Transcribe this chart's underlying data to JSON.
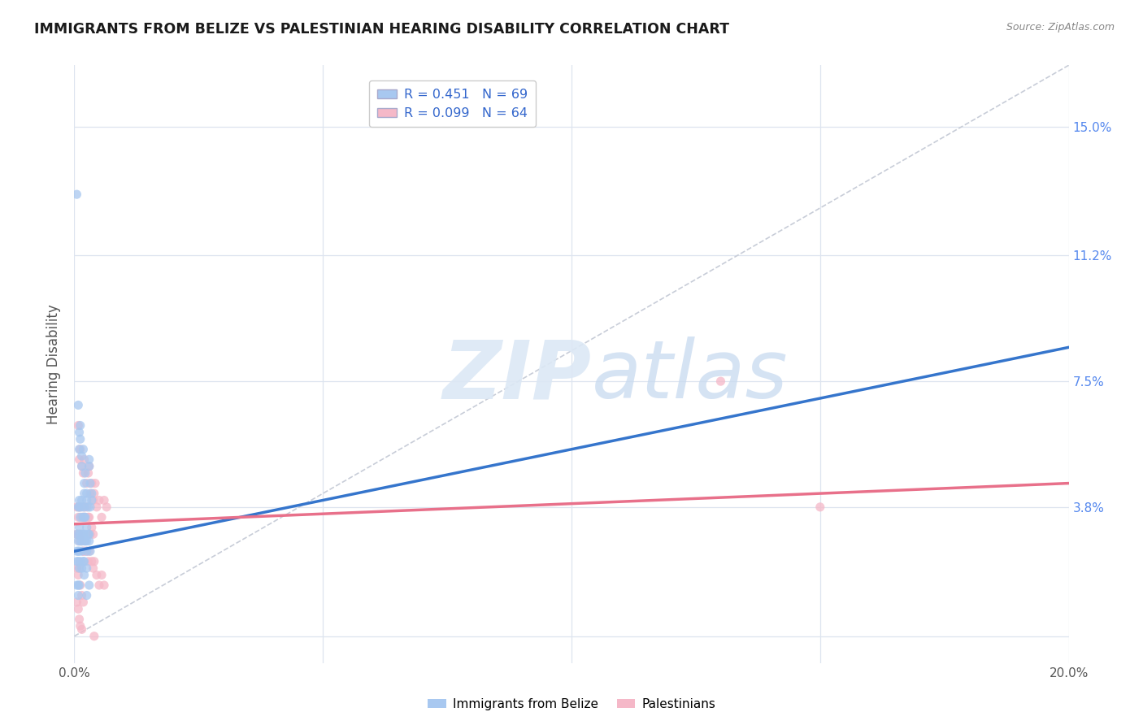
{
  "title": "IMMIGRANTS FROM BELIZE VS PALESTINIAN HEARING DISABILITY CORRELATION CHART",
  "source": "Source: ZipAtlas.com",
  "ylabel_label": "Hearing Disability",
  "right_ytick_labels": [
    "",
    "3.8%",
    "7.5%",
    "11.2%",
    "15.0%"
  ],
  "xlim": [
    0.0,
    0.2
  ],
  "ylim": [
    -0.008,
    0.168
  ],
  "belize_color": "#a8c8f0",
  "palestinian_color": "#f5b8c8",
  "belize_line_color": "#3575cc",
  "palestinian_line_color": "#e8708a",
  "diagonal_line_color": "#c8cdd8",
  "grid_yticks": [
    0.0,
    0.038,
    0.075,
    0.112,
    0.15
  ],
  "xtick_positions": [
    0.0,
    0.05,
    0.1,
    0.15,
    0.2
  ],
  "xtick_labels": [
    "0.0%",
    "",
    "",
    "",
    "20.0%"
  ],
  "belize_scatter": [
    [
      0.0005,
      0.13
    ],
    [
      0.0008,
      0.068
    ],
    [
      0.001,
      0.06
    ],
    [
      0.001,
      0.055
    ],
    [
      0.0012,
      0.058
    ],
    [
      0.0012,
      0.062
    ],
    [
      0.0015,
      0.053
    ],
    [
      0.0015,
      0.05
    ],
    [
      0.0018,
      0.055
    ],
    [
      0.002,
      0.045
    ],
    [
      0.002,
      0.042
    ],
    [
      0.0022,
      0.048
    ],
    [
      0.0025,
      0.04
    ],
    [
      0.0025,
      0.042
    ],
    [
      0.0028,
      0.038
    ],
    [
      0.003,
      0.05
    ],
    [
      0.003,
      0.052
    ],
    [
      0.0032,
      0.045
    ],
    [
      0.0032,
      0.038
    ],
    [
      0.0035,
      0.04
    ],
    [
      0.0035,
      0.042
    ],
    [
      0.0008,
      0.038
    ],
    [
      0.001,
      0.04
    ],
    [
      0.001,
      0.038
    ],
    [
      0.0012,
      0.035
    ],
    [
      0.0015,
      0.038
    ],
    [
      0.0015,
      0.04
    ],
    [
      0.0018,
      0.035
    ],
    [
      0.002,
      0.038
    ],
    [
      0.002,
      0.035
    ],
    [
      0.0022,
      0.035
    ],
    [
      0.0025,
      0.032
    ],
    [
      0.0005,
      0.03
    ],
    [
      0.0008,
      0.028
    ],
    [
      0.001,
      0.032
    ],
    [
      0.001,
      0.03
    ],
    [
      0.0012,
      0.028
    ],
    [
      0.0015,
      0.03
    ],
    [
      0.0015,
      0.028
    ],
    [
      0.0018,
      0.03
    ],
    [
      0.002,
      0.03
    ],
    [
      0.002,
      0.028
    ],
    [
      0.0022,
      0.028
    ],
    [
      0.0025,
      0.025
    ],
    [
      0.0025,
      0.028
    ],
    [
      0.0028,
      0.03
    ],
    [
      0.003,
      0.028
    ],
    [
      0.003,
      0.03
    ],
    [
      0.0032,
      0.025
    ],
    [
      0.0005,
      0.025
    ],
    [
      0.0005,
      0.022
    ],
    [
      0.0008,
      0.025
    ],
    [
      0.0008,
      0.022
    ],
    [
      0.001,
      0.025
    ],
    [
      0.001,
      0.02
    ],
    [
      0.0012,
      0.022
    ],
    [
      0.0015,
      0.025
    ],
    [
      0.0015,
      0.02
    ],
    [
      0.0018,
      0.022
    ],
    [
      0.002,
      0.022
    ],
    [
      0.002,
      0.018
    ],
    [
      0.0025,
      0.02
    ],
    [
      0.0005,
      0.015
    ],
    [
      0.0008,
      0.015
    ],
    [
      0.0008,
      0.012
    ],
    [
      0.001,
      0.015
    ],
    [
      0.0025,
      0.012
    ],
    [
      0.003,
      0.015
    ]
  ],
  "palestinian_scatter": [
    [
      0.0008,
      0.062
    ],
    [
      0.001,
      0.052
    ],
    [
      0.0012,
      0.055
    ],
    [
      0.0015,
      0.05
    ],
    [
      0.0018,
      0.048
    ],
    [
      0.002,
      0.052
    ],
    [
      0.0025,
      0.045
    ],
    [
      0.0028,
      0.048
    ],
    [
      0.003,
      0.05
    ],
    [
      0.0032,
      0.042
    ],
    [
      0.0035,
      0.045
    ],
    [
      0.0038,
      0.04
    ],
    [
      0.004,
      0.042
    ],
    [
      0.0042,
      0.045
    ],
    [
      0.0045,
      0.038
    ],
    [
      0.005,
      0.04
    ],
    [
      0.0055,
      0.035
    ],
    [
      0.006,
      0.04
    ],
    [
      0.0065,
      0.038
    ],
    [
      0.0005,
      0.038
    ],
    [
      0.0008,
      0.035
    ],
    [
      0.001,
      0.038
    ],
    [
      0.0012,
      0.038
    ],
    [
      0.0015,
      0.035
    ],
    [
      0.0018,
      0.035
    ],
    [
      0.002,
      0.038
    ],
    [
      0.0022,
      0.035
    ],
    [
      0.0025,
      0.038
    ],
    [
      0.0028,
      0.035
    ],
    [
      0.003,
      0.035
    ],
    [
      0.0032,
      0.03
    ],
    [
      0.0035,
      0.032
    ],
    [
      0.0038,
      0.03
    ],
    [
      0.0005,
      0.03
    ],
    [
      0.0008,
      0.03
    ],
    [
      0.001,
      0.028
    ],
    [
      0.0012,
      0.03
    ],
    [
      0.0015,
      0.028
    ],
    [
      0.0018,
      0.025
    ],
    [
      0.002,
      0.025
    ],
    [
      0.0025,
      0.025
    ],
    [
      0.0028,
      0.022
    ],
    [
      0.003,
      0.025
    ],
    [
      0.0035,
      0.022
    ],
    [
      0.0038,
      0.02
    ],
    [
      0.004,
      0.022
    ],
    [
      0.0045,
      0.018
    ],
    [
      0.005,
      0.015
    ],
    [
      0.0055,
      0.018
    ],
    [
      0.006,
      0.015
    ],
    [
      0.0005,
      0.02
    ],
    [
      0.0008,
      0.018
    ],
    [
      0.001,
      0.02
    ],
    [
      0.0012,
      0.015
    ],
    [
      0.0015,
      0.012
    ],
    [
      0.0018,
      0.01
    ],
    [
      0.0005,
      0.01
    ],
    [
      0.0008,
      0.008
    ],
    [
      0.001,
      0.005
    ],
    [
      0.0012,
      0.003
    ],
    [
      0.0015,
      0.002
    ],
    [
      0.004,
      0.0
    ],
    [
      0.13,
      0.075
    ],
    [
      0.15,
      0.038
    ]
  ],
  "belize_line": {
    "x0": 0.0,
    "y0": 0.025,
    "x1": 0.2,
    "y1": 0.085
  },
  "palestinian_line": {
    "x0": 0.0,
    "y0": 0.033,
    "x1": 0.2,
    "y1": 0.045
  },
  "diagonal_line": {
    "x0": 0.0,
    "y0": 0.0,
    "x1": 0.2,
    "y1": 0.168
  }
}
